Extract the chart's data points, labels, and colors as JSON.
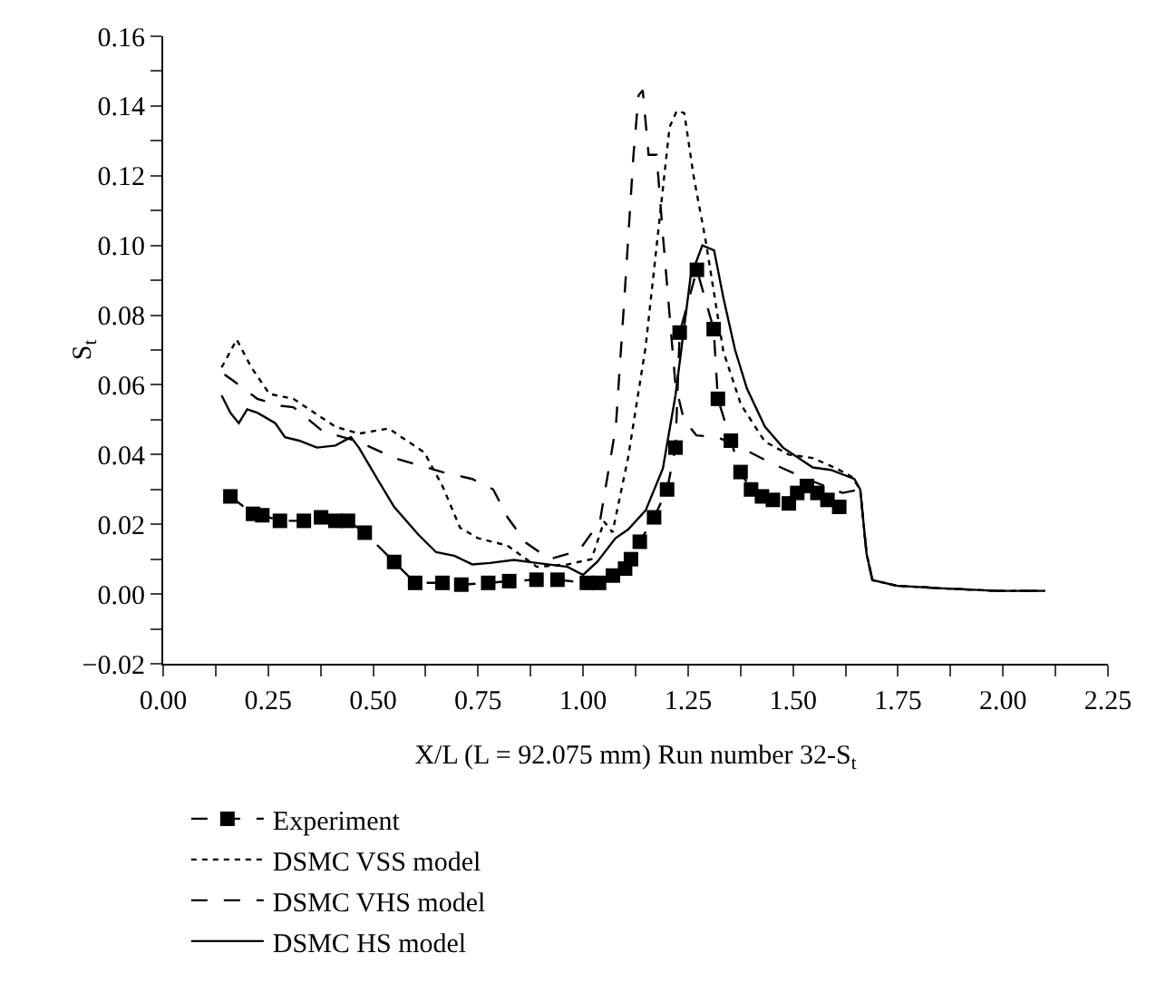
{
  "chart_data": {
    "type": "line",
    "xlabel": "X/L (L = 92.075 mm) Run number 32-S$_{t}$",
    "ylabel": "S$_{t}$",
    "xlim": [
      0,
      2.25
    ],
    "ylim": [
      -0.02,
      0.16
    ],
    "xticks": [
      {
        "value": 0,
        "label": "0.00"
      },
      {
        "value": 0.125,
        "label": null
      },
      {
        "value": 0.25,
        "label": "0.25"
      },
      {
        "value": 0.375,
        "label": null
      },
      {
        "value": 0.5,
        "label": "0.50"
      },
      {
        "value": 0.625,
        "label": null
      },
      {
        "value": 0.75,
        "label": "0.75"
      },
      {
        "value": 0.875,
        "label": null
      },
      {
        "value": 1,
        "label": "1.00"
      },
      {
        "value": 1.125,
        "label": null
      },
      {
        "value": 1.25,
        "label": "1.25"
      },
      {
        "value": 1.375,
        "label": null
      },
      {
        "value": 1.5,
        "label": "1.50"
      },
      {
        "value": 1.625,
        "label": null
      },
      {
        "value": 1.75,
        "label": "1.75"
      },
      {
        "value": 1.875,
        "label": null
      },
      {
        "value": 2,
        "label": "2.00"
      },
      {
        "value": 2.125,
        "label": null
      },
      {
        "value": 2.25,
        "label": "2.25"
      }
    ],
    "yticks": [
      {
        "value": -0.02,
        "label": "−0.02"
      },
      {
        "value": -0.01,
        "label": null
      },
      {
        "value": 0,
        "label": "0.00"
      },
      {
        "value": 0.01,
        "label": null
      },
      {
        "value": 0.02,
        "label": "0.02"
      },
      {
        "value": 0.03,
        "label": null
      },
      {
        "value": 0.04,
        "label": "0.04"
      },
      {
        "value": 0.05,
        "label": null
      },
      {
        "value": 0.06,
        "label": "0.06"
      },
      {
        "value": 0.07,
        "label": null
      },
      {
        "value": 0.08,
        "label": "0.08"
      },
      {
        "value": 0.09,
        "label": null
      },
      {
        "value": 0.1,
        "label": "0.10"
      },
      {
        "value": 0.11,
        "label": null
      },
      {
        "value": 0.12,
        "label": "0.12"
      },
      {
        "value": 0.13,
        "label": null
      },
      {
        "value": 0.14,
        "label": "0.14"
      },
      {
        "value": 0.15,
        "label": null
      },
      {
        "value": 0.16,
        "label": "0.16"
      }
    ],
    "grid": false,
    "legend": "bottom",
    "series": [
      {
        "name": "Experiment",
        "color": "#000000",
        "marker": "square",
        "line_style": "dashed",
        "x": [
          0.16,
          0.214,
          0.236,
          0.278,
          0.335,
          0.376,
          0.41,
          0.44,
          0.48,
          0.55,
          0.6,
          0.665,
          0.71,
          0.774,
          0.824,
          0.889,
          0.939,
          1.009,
          1.038,
          1.071,
          1.1,
          1.114,
          1.135,
          1.169,
          1.2,
          1.22,
          1.23,
          1.271,
          1.311,
          1.321,
          1.352,
          1.375,
          1.4,
          1.426,
          1.452,
          1.49,
          1.51,
          1.533,
          1.558,
          1.582,
          1.61
        ],
        "values": [
          0.028,
          0.023,
          0.0226,
          0.021,
          0.021,
          0.022,
          0.021,
          0.021,
          0.0176,
          0.0092,
          0.0032,
          0.0032,
          0.0027,
          0.0032,
          0.0037,
          0.0041,
          0.0041,
          0.0032,
          0.0032,
          0.0053,
          0.0073,
          0.01,
          0.015,
          0.022,
          0.03,
          0.042,
          0.075,
          0.093,
          0.076,
          0.056,
          0.044,
          0.035,
          0.03,
          0.028,
          0.027,
          0.026,
          0.029,
          0.031,
          0.029,
          0.027,
          0.025
        ]
      },
      {
        "name": "DSMC VSS model",
        "color": "#000000",
        "marker": "none",
        "line_style": "dotted",
        "x": [
          0.139,
          0.16,
          0.175,
          0.21,
          0.253,
          0.31,
          0.41,
          0.466,
          0.537,
          0.622,
          0.665,
          0.707,
          0.75,
          0.82,
          0.89,
          0.963,
          1.02,
          1.05,
          1.07,
          1.107,
          1.149,
          1.178,
          1.206,
          1.223,
          1.241,
          1.263,
          1.291,
          1.334,
          1.376,
          1.433,
          1.49,
          1.547,
          1.604,
          1.639,
          1.66,
          1.675,
          1.689,
          1.746,
          1.845,
          1.987,
          2.1
        ],
        "values": [
          0.065,
          0.0696,
          0.073,
          0.065,
          0.0574,
          0.056,
          0.048,
          0.046,
          0.0475,
          0.0406,
          0.031,
          0.019,
          0.016,
          0.0139,
          0.0078,
          0.0085,
          0.01,
          0.0208,
          0.0177,
          0.039,
          0.071,
          0.103,
          0.134,
          0.1386,
          0.138,
          0.12,
          0.102,
          0.0696,
          0.0543,
          0.0437,
          0.04,
          0.039,
          0.036,
          0.0337,
          0.03,
          0.0116,
          0.004,
          0.0024,
          0.0017,
          0.0009,
          0.0009
        ]
      },
      {
        "name": "DSMC VHS model",
        "color": "#000000",
        "marker": "none",
        "line_style": "dashed",
        "x": [
          0.146,
          0.18,
          0.224,
          0.28,
          0.31,
          0.38,
          0.466,
          0.55,
          0.665,
          0.736,
          0.786,
          0.82,
          0.864,
          0.92,
          0.99,
          1.04,
          1.078,
          1.1,
          1.12,
          1.132,
          1.142,
          1.156,
          1.175,
          1.19,
          1.206,
          1.22,
          1.24,
          1.27,
          1.32,
          1.376,
          1.447,
          1.533,
          1.618,
          1.66,
          1.675,
          1.689,
          1.746,
          1.845,
          1.987,
          2.1
        ],
        "values": [
          0.063,
          0.06,
          0.056,
          0.054,
          0.0536,
          0.0467,
          0.0437,
          0.039,
          0.035,
          0.033,
          0.03,
          0.022,
          0.0147,
          0.01,
          0.0124,
          0.0208,
          0.048,
          0.088,
          0.126,
          0.143,
          0.1445,
          0.126,
          0.126,
          0.103,
          0.08,
          0.06,
          0.05,
          0.0455,
          0.045,
          0.042,
          0.0376,
          0.033,
          0.029,
          0.03,
          0.0116,
          0.004,
          0.0024,
          0.0017,
          0.0009,
          0.0009
        ]
      },
      {
        "name": "DSMC HS model",
        "color": "#000000",
        "marker": "none",
        "line_style": "solid",
        "x": [
          0.139,
          0.16,
          0.18,
          0.2,
          0.224,
          0.267,
          0.29,
          0.324,
          0.366,
          0.41,
          0.447,
          0.466,
          0.51,
          0.55,
          0.608,
          0.65,
          0.693,
          0.736,
          0.778,
          0.835,
          0.89,
          0.963,
          1.0,
          1.034,
          1.077,
          1.107,
          1.149,
          1.19,
          1.22,
          1.256,
          1.284,
          1.312,
          1.334,
          1.362,
          1.39,
          1.433,
          1.476,
          1.547,
          1.59,
          1.646,
          1.66,
          1.675,
          1.689,
          1.746,
          1.845,
          1.987,
          2.1
        ],
        "values": [
          0.057,
          0.052,
          0.049,
          0.053,
          0.052,
          0.049,
          0.045,
          0.044,
          0.042,
          0.0426,
          0.045,
          0.042,
          0.033,
          0.025,
          0.017,
          0.012,
          0.011,
          0.0085,
          0.0089,
          0.0098,
          0.0089,
          0.0078,
          0.0055,
          0.0093,
          0.016,
          0.0185,
          0.024,
          0.036,
          0.057,
          0.091,
          0.1,
          0.0986,
          0.085,
          0.07,
          0.059,
          0.048,
          0.042,
          0.0363,
          0.0356,
          0.033,
          0.03,
          0.0116,
          0.004,
          0.0024,
          0.0017,
          0.0009,
          0.0009
        ]
      }
    ]
  }
}
